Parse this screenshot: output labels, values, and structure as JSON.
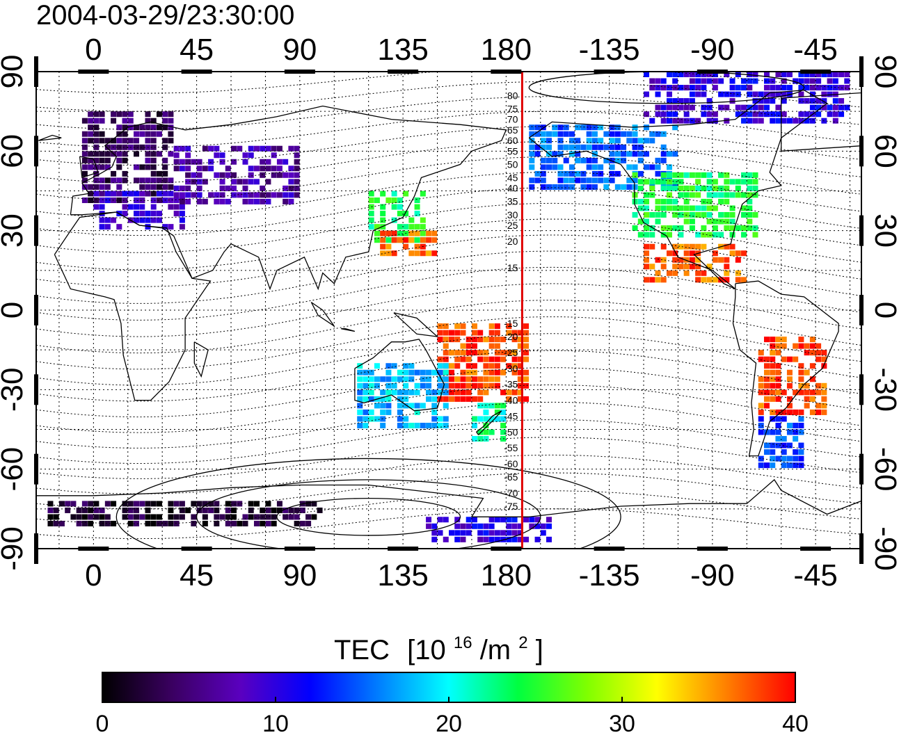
{
  "timestamp": "2004-03-29/23:30:00",
  "map": {
    "lon_ticks_top": [
      "0",
      "45",
      "90",
      "135",
      "180",
      "-135",
      "-90",
      "-45"
    ],
    "lon_ticks_bottom": [
      "0",
      "45",
      "90",
      "135",
      "180",
      "-135",
      "-90",
      "-45"
    ],
    "lat_ticks_left": [
      "90",
      "60",
      "30",
      "0",
      "-30",
      "-60",
      "-90"
    ],
    "lat_ticks_right": [
      "90",
      "60",
      "30",
      "0",
      "-30",
      "-60",
      "-90"
    ],
    "lon_tick_values": [
      0,
      45,
      90,
      135,
      180,
      225,
      270,
      315
    ],
    "lat_tick_values": [
      90,
      60,
      30,
      0,
      -30,
      -60,
      -90
    ],
    "lon_range": [
      -25,
      335
    ],
    "lat_range": [
      -90,
      90
    ],
    "contour_labels": [
      "80",
      "75",
      "70",
      "65",
      "60",
      "55",
      "50",
      "45",
      "40",
      "35",
      "30",
      "25",
      "20",
      "15",
      "-15",
      "-20",
      "-25",
      "-30",
      "-35",
      "-40",
      "-45",
      "-50",
      "-55",
      "-60",
      "-65",
      "-70",
      "-75"
    ],
    "contour_label_lats": [
      81,
      76,
      72,
      68,
      64,
      60,
      55,
      50,
      46,
      41,
      36,
      32,
      26,
      16,
      -5,
      -10,
      -16,
      -22,
      -28,
      -34,
      -40,
      -46,
      -52,
      -58,
      -63,
      -69,
      -74
    ],
    "meridian_line_lon": 187,
    "meridian_line_color": "#e00000",
    "coast_color": "#000000"
  },
  "colorbar": {
    "title": "TEC",
    "unit_base": "[10",
    "unit_exp": "16",
    "unit_mid": "/m",
    "unit_exp2": "2",
    "unit_close": "]",
    "tick_labels": [
      "0",
      "10",
      "20",
      "30",
      "40"
    ],
    "tick_values": [
      0,
      10,
      20,
      30,
      40
    ],
    "range": [
      0,
      40
    ],
    "colors": [
      "#000000",
      "#3a0060",
      "#5a00c0",
      "#0000ff",
      "#0080ff",
      "#00ffff",
      "#00ff40",
      "#80ff00",
      "#ffff00",
      "#ff8000",
      "#ff0000"
    ]
  },
  "chart_data": {
    "type": "heatmap",
    "title": "2004-03-29/23:30:00",
    "xlabel": "",
    "ylabel": "",
    "xlim": [
      -25,
      335
    ],
    "ylim": [
      -90,
      90
    ],
    "value_range": [
      0,
      40
    ],
    "regions": [
      {
        "lon": [
          -5,
          35
        ],
        "lat": [
          40,
          75
        ],
        "tec": 4
      },
      {
        "lon": [
          0,
          40
        ],
        "lat": [
          30,
          45
        ],
        "tec": 9
      },
      {
        "lon": [
          35,
          90
        ],
        "lat": [
          40,
          62
        ],
        "tec": 7
      },
      {
        "lon": [
          120,
          145
        ],
        "lat": [
          25,
          45
        ],
        "tec": 24
      },
      {
        "lon": [
          125,
          150
        ],
        "lat": [
          20,
          30
        ],
        "tec": 37
      },
      {
        "lon": [
          190,
          255
        ],
        "lat": [
          45,
          70
        ],
        "tec": 15
      },
      {
        "lon": [
          235,
          290
        ],
        "lat": [
          28,
          52
        ],
        "tec": 24
      },
      {
        "lon": [
          240,
          285
        ],
        "lat": [
          10,
          25
        ],
        "tec": 37
      },
      {
        "lon": [
          290,
          320
        ],
        "lat": [
          -40,
          -10
        ],
        "tec": 38
      },
      {
        "lon": [
          150,
          190
        ],
        "lat": [
          -35,
          -5
        ],
        "tec": 38
      },
      {
        "lon": [
          115,
          155
        ],
        "lat": [
          -45,
          -20
        ],
        "tec": 18
      },
      {
        "lon": [
          165,
          180
        ],
        "lat": [
          -50,
          -35
        ],
        "tec": 22
      },
      {
        "lon": [
          290,
          310
        ],
        "lat": [
          -58,
          -40
        ],
        "tec": 14
      },
      {
        "lon": [
          240,
          330
        ],
        "lat": [
          72,
          90
        ],
        "tec": 10
      },
      {
        "lon": [
          -20,
          100
        ],
        "lat": [
          -80,
          -72
        ],
        "tec": 2
      },
      {
        "lon": [
          145,
          200
        ],
        "lat": [
          -88,
          -78
        ],
        "tec": 10
      }
    ]
  }
}
